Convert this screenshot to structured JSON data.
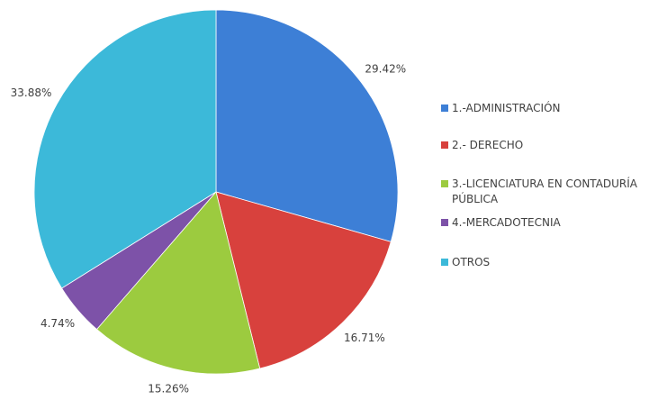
{
  "chart_data": {
    "type": "pie",
    "categories": [
      "1.-ADMINISTRACIÓN",
      "2.- DERECHO",
      "3.-LICENCIATURA EN CONTADURÍA PÚBLICA",
      "4.-MERCADOTECNIA",
      "OTROS"
    ],
    "values": [
      29.42,
      16.71,
      15.26,
      4.74,
      33.88
    ],
    "value_labels": [
      "29.42%",
      "16.71%",
      "15.26%",
      "4.74%",
      "33.88%"
    ],
    "colors": [
      "#3d7fd6",
      "#d8413d",
      "#9ccb3f",
      "#7d52a8",
      "#3cb9d9"
    ],
    "legend": "right"
  }
}
